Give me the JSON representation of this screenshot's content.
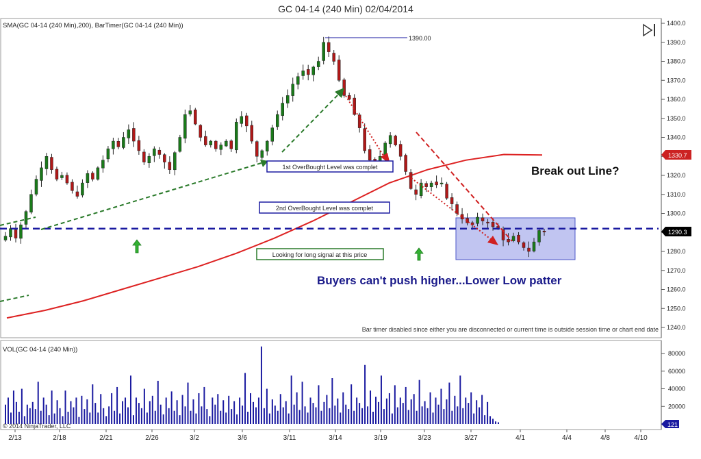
{
  "title": "GC 04-14 (240 Min)  02/04/2014",
  "price_panel_label": "SMA(GC 04-14 (240 Min),200), BarTimer(GC 04-14 (240 Min))",
  "volume_panel_label": "VOL(GC 04-14 (240 Min))",
  "copyright": "© 2014 NinjaTrader, LLC",
  "bar_timer_message": "Bar timer disabled since either you are disconnected or current time is outside session time or chart end date",
  "annotations": {
    "high_label": "1390.00",
    "overbought_1": "1st OverBought Level was complet",
    "overbought_2": "2nd OverBought Level was complet",
    "long_signal": "Looking for long signal at this price",
    "breakout": "Break out Line?",
    "buyers": "Buyers can't push higher...Lower Low patter"
  },
  "price_markers": {
    "sma": {
      "label": "1330.7",
      "value": 1330.7,
      "color": "#cc2222"
    },
    "last": {
      "label": "1290.3",
      "value": 1290.3,
      "color": "#000000"
    }
  },
  "volume_marker": {
    "label": "121",
    "value": 121,
    "color": "#1a1aa0"
  },
  "colors": {
    "up": "#1a7a1a",
    "down": "#b01818",
    "sma": "#dd2222",
    "support": "#1a1aa0",
    "volume": "#1a1aa0",
    "box": "#8e96e6"
  },
  "chart_data": {
    "type": "candlestick",
    "x_tick_labels": [
      "2/13",
      "2/18",
      "2/21",
      "2/26",
      "3/2",
      "3/6",
      "3/11",
      "3/14",
      "3/19",
      "3/23",
      "3/27",
      "4/1",
      "4/4",
      "4/8",
      "4/10"
    ],
    "price_axis": {
      "ylim": [
        1235,
        1402
      ],
      "ticks": [
        1240,
        1250,
        1260,
        1270,
        1280,
        1290,
        1300,
        1310,
        1320,
        1330,
        1340,
        1350,
        1360,
        1370,
        1380,
        1390,
        1400
      ]
    },
    "volume_axis": {
      "ylim": [
        0,
        92000
      ],
      "ticks": [
        20000,
        40000,
        60000,
        80000
      ]
    },
    "support_level": 1292,
    "price_path": [
      1288,
      1292,
      1287,
      1294,
      1301,
      1310,
      1318,
      1324,
      1330,
      1323,
      1318,
      1320,
      1316,
      1312,
      1309,
      1316,
      1321,
      1318,
      1324,
      1328,
      1334,
      1338,
      1335,
      1340,
      1344,
      1338,
      1333,
      1327,
      1330,
      1334,
      1331,
      1327,
      1323,
      1332,
      1340,
      1352,
      1354,
      1347,
      1340,
      1336,
      1338,
      1334,
      1336,
      1338,
      1334,
      1348,
      1351,
      1346,
      1338,
      1330,
      1333,
      1338,
      1345,
      1352,
      1358,
      1362,
      1368,
      1372,
      1375,
      1373,
      1377,
      1380,
      1390,
      1385,
      1380,
      1370,
      1362,
      1360,
      1352,
      1345,
      1333,
      1328,
      1325,
      1330,
      1337,
      1341,
      1336,
      1330,
      1322,
      1313,
      1310,
      1316,
      1314,
      1316,
      1315,
      1316,
      1308,
      1305,
      1300,
      1297,
      1295,
      1294,
      1298,
      1296,
      1295,
      1293,
      1292,
      1286,
      1285,
      1288,
      1285,
      1282,
      1280,
      1285,
      1291,
      1290.3
    ],
    "sma_path": [
      1245,
      1249,
      1254,
      1260,
      1266,
      1272,
      1279,
      1287,
      1296,
      1306,
      1316,
      1323,
      1328,
      1331,
      1330.7
    ],
    "volume_values": [
      22000,
      30000,
      13000,
      38000,
      25000,
      14000,
      40000,
      9000,
      22000,
      18000,
      25000,
      17000,
      48000,
      15000,
      30000,
      22000,
      10000,
      38000,
      12000,
      27000,
      18000,
      9000,
      38000,
      14000,
      26000,
      19000,
      30000,
      8000,
      32000,
      17000,
      28000,
      13000,
      45000,
      24000,
      13000,
      34000,
      18000,
      9000,
      20000,
      35000,
      15000,
      42000,
      12000,
      26000,
      30000,
      19000,
      55000,
      10000,
      30000,
      24000,
      18000,
      40000,
      13000,
      26000,
      32000,
      15000,
      49000,
      22000,
      11000,
      30000,
      18000,
      37000,
      15000,
      27000,
      10000,
      33000,
      20000,
      47000,
      15000,
      28000,
      12000,
      35000,
      20000,
      42000,
      17000,
      9000,
      30000,
      22000,
      34000,
      15000,
      27000,
      13000,
      32000,
      17000,
      26000,
      11000,
      30000,
      21000,
      58000,
      14000,
      35000,
      25000,
      19000,
      30000,
      88000,
      18000,
      40000,
      12000,
      28000,
      21000,
      15000,
      34000,
      19000,
      26000,
      12000,
      55000,
      22000,
      36000,
      16000,
      48000,
      20000,
      13000,
      30000,
      24000,
      19000,
      44000,
      15000,
      25000,
      33000,
      18000,
      52000,
      21000,
      29000,
      13000,
      36000,
      22000,
      17000,
      45000,
      15000,
      30000,
      24000,
      18000,
      67000,
      20000,
      38000,
      14000,
      31000,
      25000,
      55000,
      17000,
      29000,
      35000,
      12000,
      44000,
      19000,
      30000,
      24000,
      42000,
      16000,
      28000,
      34000,
      15000,
      50000,
      20000,
      26000,
      18000,
      36000,
      13000,
      30000,
      22000,
      40000,
      17000,
      28000,
      47000,
      15000,
      32000,
      20000,
      55000,
      18000,
      30000,
      24000,
      36000,
      12000,
      27000,
      19000,
      33000,
      10000,
      25000,
      9000,
      6000,
      3000,
      2000
    ]
  }
}
